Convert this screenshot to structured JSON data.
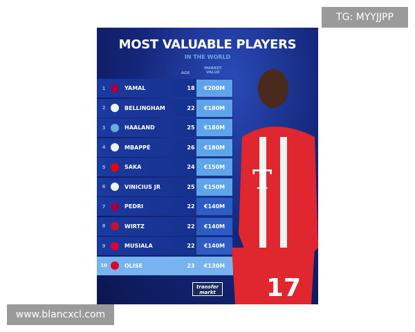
{
  "poster": {
    "title": "MOST VALUABLE PLAYERS",
    "subtitle": "IN THE WORLD",
    "age_header": "AGE",
    "value_header": "MARKET VALUE",
    "logo": "transfer markt",
    "players": [
      {
        "rank": "1",
        "name": "YAMAL",
        "age": "18",
        "value": "€200M",
        "club_color": "#a50044"
      },
      {
        "rank": "2",
        "name": "BELLINGHAM",
        "age": "22",
        "value": "€180M",
        "club_color": "#f2f2f2"
      },
      {
        "rank": "3",
        "name": "HAALAND",
        "age": "25",
        "value": "€180M",
        "club_color": "#6cabdd"
      },
      {
        "rank": "4",
        "name": "MBAPPÉ",
        "age": "26",
        "value": "€180M",
        "club_color": "#f2f2f2"
      },
      {
        "rank": "5",
        "name": "SAKA",
        "age": "24",
        "value": "€150M",
        "club_color": "#ef0107"
      },
      {
        "rank": "6",
        "name": "VINICIUS JR",
        "age": "25",
        "value": "€150M",
        "club_color": "#f2f2f2"
      },
      {
        "rank": "7",
        "name": "PEDRI",
        "age": "22",
        "value": "€140M",
        "club_color": "#a50044"
      },
      {
        "rank": "8",
        "name": "WIRTZ",
        "age": "22",
        "value": "€140M",
        "club_color": "#c8102e"
      },
      {
        "rank": "9",
        "name": "MUSIALA",
        "age": "22",
        "value": "€140M",
        "club_color": "#dc052d"
      },
      {
        "rank": "10",
        "name": "OLISE",
        "age": "23",
        "value": "€130M",
        "club_color": "#dc052d"
      }
    ]
  },
  "watermarks": {
    "top": "TG: MYYJJPP",
    "bottom": "www.blancxcl.com"
  }
}
